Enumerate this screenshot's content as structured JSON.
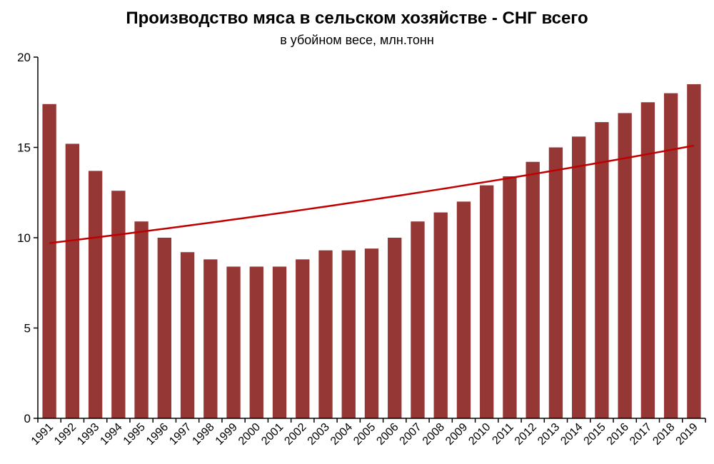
{
  "chart_data": {
    "type": "bar",
    "title": "Производство мяса в сельском хозяйстве - СНГ всего",
    "subtitle": "в убойном весе, млн.тонн",
    "xlabel": "",
    "ylabel": "",
    "ylim": [
      0,
      20
    ],
    "yticks": [
      0,
      5,
      10,
      15,
      20
    ],
    "grid": false,
    "legend": "none",
    "categories": [
      "1991",
      "1992",
      "1993",
      "1994",
      "1995",
      "1996",
      "1997",
      "1998",
      "1999",
      "2000",
      "2001",
      "2002",
      "2003",
      "2004",
      "2005",
      "2006",
      "2007",
      "2008",
      "2009",
      "2010",
      "2011",
      "2012",
      "2013",
      "2014",
      "2015",
      "2016",
      "2017",
      "2018",
      "2019"
    ],
    "series": [
      {
        "values": [
          17.4,
          15.2,
          13.7,
          12.6,
          10.9,
          10.0,
          9.2,
          8.8,
          8.4,
          8.4,
          8.4,
          8.8,
          9.3,
          9.3,
          9.4,
          10.0,
          10.9,
          11.4,
          12.0,
          12.9,
          13.4,
          14.2,
          15.0,
          15.6,
          16.4,
          16.9,
          17.5,
          18.0,
          18.5
        ],
        "color": "#953735"
      }
    ],
    "trendline": {
      "type": "exponential",
      "color": "#c00000",
      "start": {
        "x": "1991",
        "y": 9.7
      },
      "end": {
        "x": "2019",
        "y": 15.1
      }
    }
  }
}
